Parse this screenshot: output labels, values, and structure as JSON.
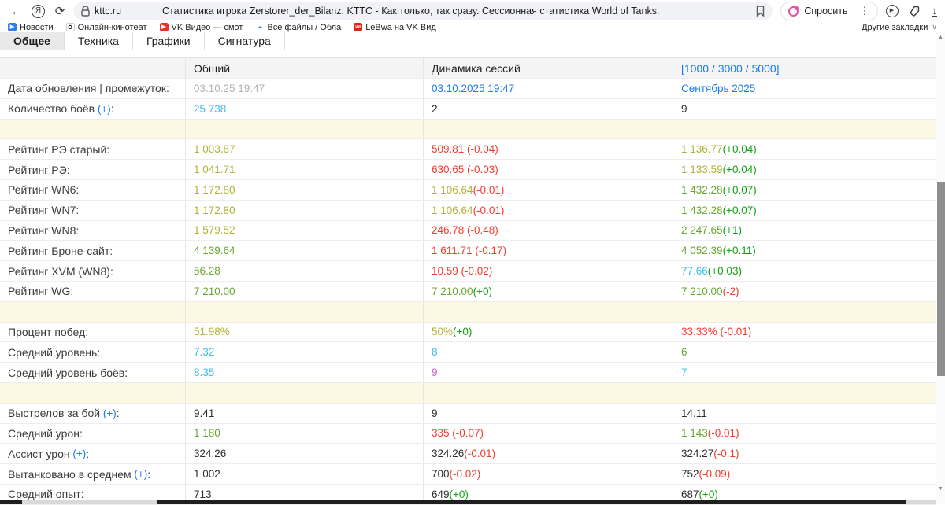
{
  "browser": {
    "url": "kttc.ru",
    "page_title": "Статистика игрока Zerstorer_der_Bilanz. KTTC - Как только, так сразу. Сессионная статистика World of Tanks.",
    "yandex_letter": "Я",
    "back_glyph": "←",
    "refresh_glyph": "⟳",
    "ask_label": "Спросить",
    "kebab_glyph": "⋮",
    "download_glyph": "↓",
    "play_glyph": "▶"
  },
  "bookmarks_bar": {
    "items": [
      {
        "label": "Новости",
        "icon": {
          "name": "news-play-icon",
          "bg": "#2b7cf6",
          "fg": "#ffffff",
          "glyph": "▶"
        }
      },
      {
        "label": "Онлайн-кинотеат",
        "icon": {
          "name": "okko-icon",
          "bg": "#ffffff",
          "fg": "#000000",
          "glyph": "Ö",
          "border": "#cccccc"
        }
      },
      {
        "label": "VK Видео — смот",
        "icon": {
          "name": "vk-video-icon",
          "bg": "#f02d2d",
          "fg": "#ffffff",
          "glyph": "▶"
        }
      },
      {
        "label": "Все файлы / Обла",
        "icon": {
          "name": "cloud-icon",
          "bg": "#ffffff",
          "fg": "#4a90e2",
          "glyph": "☁"
        }
      },
      {
        "label": "LeBwa на VK Вид",
        "icon": {
          "name": "lebwa-icon",
          "bg": "#e62117",
          "fg": "#ffffff",
          "glyph": "uw"
        }
      }
    ],
    "other_label": "Другие закладки",
    "chevron": "∨"
  },
  "tabs": [
    "Общее",
    "Техника",
    "Графики",
    "Сигнатура"
  ],
  "palette": {
    "link_blue": "#187bf0",
    "cyan": "#41bde8",
    "olive": "#b2b139",
    "value_green": "#68a631",
    "delta_green": "#12a112",
    "red": "#f43b2e",
    "magenta": "#c75ad8",
    "muted_gray": "#b3b3b3",
    "separator_row_bg": "#fcf8e3"
  },
  "table": {
    "headers": [
      "",
      "Общий",
      "Динамика сессий",
      "[1000 / 3000 / 5000]"
    ],
    "rows": [
      {
        "label": "Дата обновления | промежуток",
        "cells": [
          [
            {
              "t": "03.10.25 19:47",
              "c": "gray"
            }
          ],
          [
            {
              "t": "03.10.2025 19:47",
              "c": "blue"
            }
          ],
          [
            {
              "t": "Сентябрь 2025",
              "c": "blue"
            }
          ]
        ]
      },
      {
        "label": "Количество боёв",
        "plus": true,
        "cells": [
          [
            {
              "t": "25 738",
              "c": "cyan"
            }
          ],
          [
            {
              "t": "2",
              "c": "black"
            }
          ],
          [
            {
              "t": "9",
              "c": "black"
            }
          ]
        ]
      },
      {
        "sep": true
      },
      {
        "label": "Рейтинг РЭ старый",
        "cells": [
          [
            {
              "t": "1 003.87",
              "c": "olive"
            }
          ],
          [
            {
              "t": "509.81 (-0.04)",
              "c": "red"
            }
          ],
          [
            {
              "t": "1 136.77",
              "c": "olive"
            },
            {
              "t": " (+0.04)",
              "c": "dgreen"
            }
          ]
        ]
      },
      {
        "label": "Рейтинг РЭ",
        "cells": [
          [
            {
              "t": "1 041.71",
              "c": "olive"
            }
          ],
          [
            {
              "t": "630.65 (-0.03)",
              "c": "red"
            }
          ],
          [
            {
              "t": "1 133.59",
              "c": "olive"
            },
            {
              "t": " (+0.04)",
              "c": "dgreen"
            }
          ]
        ]
      },
      {
        "label": "Рейтинг WN6",
        "cells": [
          [
            {
              "t": "1 172.80",
              "c": "olive"
            }
          ],
          [
            {
              "t": "1 106.64",
              "c": "olive"
            },
            {
              "t": " (-0.01)",
              "c": "red"
            }
          ],
          [
            {
              "t": "1 432.28",
              "c": "green"
            },
            {
              "t": " (+0.07)",
              "c": "dgreen"
            }
          ]
        ]
      },
      {
        "label": "Рейтинг WN7",
        "cells": [
          [
            {
              "t": "1 172.80",
              "c": "olive"
            }
          ],
          [
            {
              "t": "1 106.64",
              "c": "olive"
            },
            {
              "t": " (-0.01)",
              "c": "red"
            }
          ],
          [
            {
              "t": "1 432.28",
              "c": "green"
            },
            {
              "t": " (+0.07)",
              "c": "dgreen"
            }
          ]
        ]
      },
      {
        "label": "Рейтинг WN8",
        "cells": [
          [
            {
              "t": "1 579.52",
              "c": "olive"
            }
          ],
          [
            {
              "t": "246.78 (-0.48)",
              "c": "red"
            }
          ],
          [
            {
              "t": "2 247.65",
              "c": "green"
            },
            {
              "t": " (+1)",
              "c": "dgreen"
            }
          ]
        ]
      },
      {
        "label": "Рейтинг Броне-сайт",
        "cells": [
          [
            {
              "t": "4 139.64",
              "c": "green"
            }
          ],
          [
            {
              "t": "1 611.71 (-0.17)",
              "c": "red"
            }
          ],
          [
            {
              "t": "4 052.39",
              "c": "green"
            },
            {
              "t": " (+0.11)",
              "c": "dgreen"
            }
          ]
        ]
      },
      {
        "label": "Рейтинг XVM (WN8)",
        "cells": [
          [
            {
              "t": "56.28",
              "c": "green"
            }
          ],
          [
            {
              "t": "10.59 (-0.02)",
              "c": "red"
            }
          ],
          [
            {
              "t": "77.66",
              "c": "cyan"
            },
            {
              "t": " (+0.03)",
              "c": "dgreen"
            }
          ]
        ]
      },
      {
        "label": "Рейтинг WG",
        "cells": [
          [
            {
              "t": "7 210.00",
              "c": "green"
            }
          ],
          [
            {
              "t": "7 210.00",
              "c": "green"
            },
            {
              "t": " (+0)",
              "c": "dgreen"
            }
          ],
          [
            {
              "t": "7 210.00",
              "c": "green"
            },
            {
              "t": " (-2)",
              "c": "red"
            }
          ]
        ]
      },
      {
        "sep": true
      },
      {
        "label": "Процент побед",
        "cells": [
          [
            {
              "t": "51.98%",
              "c": "olive"
            }
          ],
          [
            {
              "t": "50%",
              "c": "olive"
            },
            {
              "t": " (+0)",
              "c": "dgreen"
            }
          ],
          [
            {
              "t": "33.33% (-0.01)",
              "c": "red"
            }
          ]
        ]
      },
      {
        "label": "Средний уровень",
        "cells": [
          [
            {
              "t": "7.32",
              "c": "cyan"
            }
          ],
          [
            {
              "t": "8",
              "c": "cyan"
            }
          ],
          [
            {
              "t": "6",
              "c": "green"
            }
          ]
        ]
      },
      {
        "label": "Средний уровень боёв",
        "cells": [
          [
            {
              "t": "8.35",
              "c": "cyan"
            }
          ],
          [
            {
              "t": "9",
              "c": "magenta"
            }
          ],
          [
            {
              "t": "7",
              "c": "cyan"
            }
          ]
        ]
      },
      {
        "sep": true
      },
      {
        "label": "Выстрелов за бой",
        "plus": true,
        "cells": [
          [
            {
              "t": "9.41",
              "c": "black"
            }
          ],
          [
            {
              "t": "9",
              "c": "black"
            }
          ],
          [
            {
              "t": "14.11",
              "c": "black"
            }
          ]
        ]
      },
      {
        "label": "Средний урон",
        "cells": [
          [
            {
              "t": "1 180",
              "c": "green"
            }
          ],
          [
            {
              "t": "335 (-0.07)",
              "c": "red"
            }
          ],
          [
            {
              "t": "1 143",
              "c": "green"
            },
            {
              "t": " (-0.01)",
              "c": "red"
            }
          ]
        ]
      },
      {
        "label": "Ассист урон",
        "plus": true,
        "cells": [
          [
            {
              "t": "324.26",
              "c": "black"
            }
          ],
          [
            {
              "t": "324.26",
              "c": "black"
            },
            {
              "t": " (-0.01)",
              "c": "red"
            }
          ],
          [
            {
              "t": "324.27",
              "c": "black"
            },
            {
              "t": " (-0.1)",
              "c": "red"
            }
          ]
        ]
      },
      {
        "label": "Вытанковано в среднем",
        "plus": true,
        "cells": [
          [
            {
              "t": "1 002",
              "c": "black"
            }
          ],
          [
            {
              "t": "700",
              "c": "black"
            },
            {
              "t": " (-0.02)",
              "c": "red"
            }
          ],
          [
            {
              "t": "752",
              "c": "black"
            },
            {
              "t": " (-0.09)",
              "c": "red"
            }
          ]
        ]
      },
      {
        "label": "Средний опыт",
        "cells": [
          [
            {
              "t": "713",
              "c": "black"
            }
          ],
          [
            {
              "t": "649",
              "c": "black"
            },
            {
              "t": " (+0)",
              "c": "dgreen"
            }
          ],
          [
            {
              "t": "687",
              "c": "black"
            },
            {
              "t": " (+0)",
              "c": "dgreen"
            }
          ]
        ]
      }
    ]
  }
}
